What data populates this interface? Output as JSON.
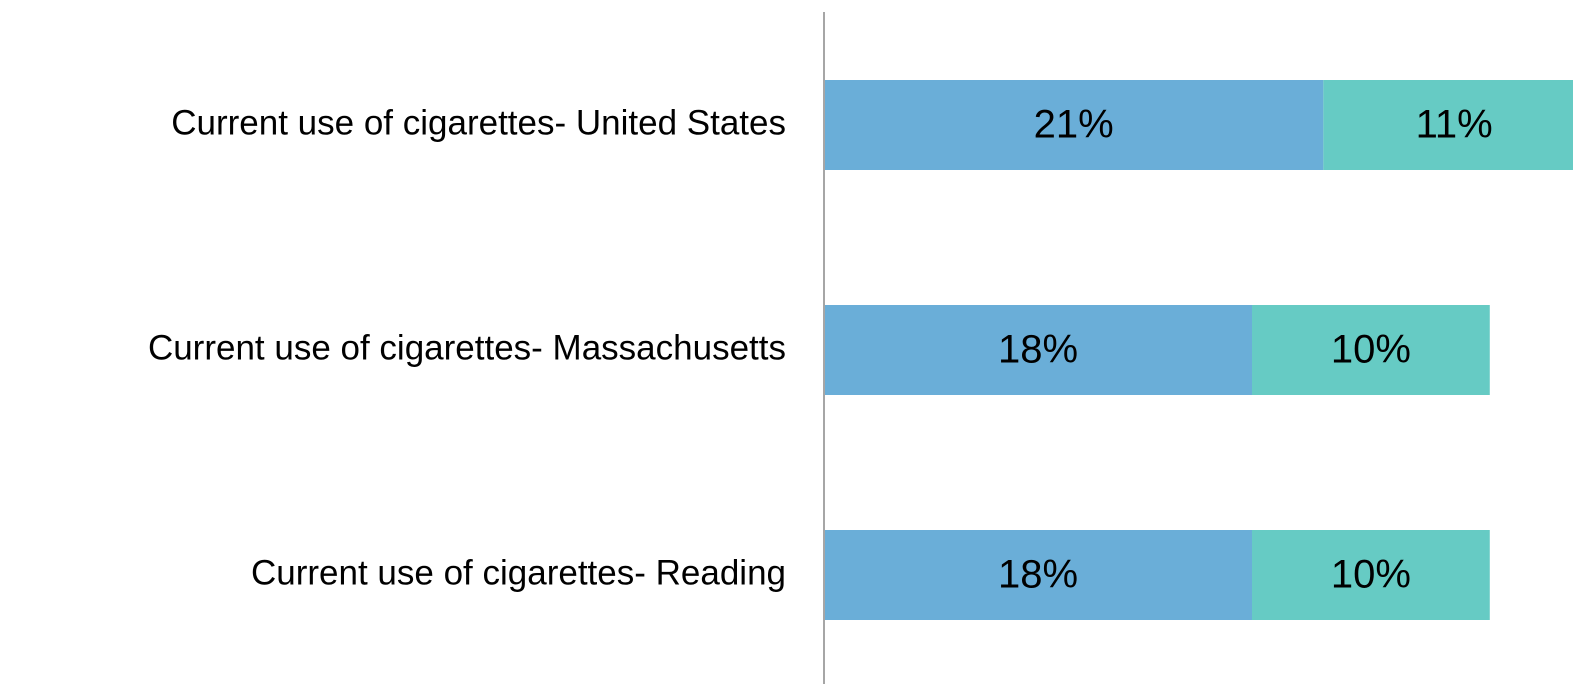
{
  "chart_data": {
    "type": "stacked_bar_horizontal",
    "categories": [
      "Current use of cigarettes- United States",
      "Current use of cigarettes- Massachusetts",
      "Current use of cigarettes- Reading"
    ],
    "series": [
      {
        "color": "#6aaed8",
        "values": [
          21,
          18,
          18
        ],
        "value_labels": [
          "21%",
          "18%",
          "18%"
        ]
      },
      {
        "color": "#66cbc4",
        "values": [
          11,
          10,
          10
        ],
        "value_labels": [
          "11%",
          "10%",
          "10%"
        ]
      }
    ],
    "xlim": [
      0,
      31.5
    ]
  }
}
